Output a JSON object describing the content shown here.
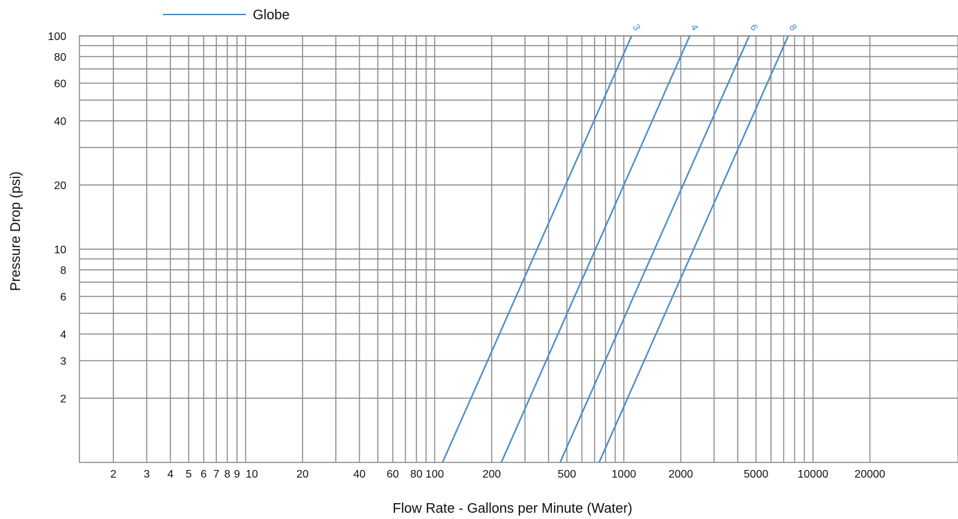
{
  "chart_data": {
    "type": "line",
    "title": "",
    "xlabel": "Flow Rate - Gallons per Minute (Water)",
    "ylabel": "Pressure Drop (psi)",
    "x_scale": "log",
    "y_scale": "log",
    "xlim": [
      1,
      40000
    ],
    "ylim": [
      1,
      100
    ],
    "grid": true,
    "legend": {
      "entries": [
        "Globe"
      ],
      "position": "top-left"
    },
    "x_gridlines": [
      2,
      3,
      4,
      5,
      6,
      7,
      8,
      9,
      10,
      20,
      30,
      40,
      50,
      60,
      70,
      80,
      90,
      100,
      200,
      300,
      400,
      500,
      600,
      700,
      800,
      900,
      1000,
      2000,
      3000,
      4000,
      5000,
      6000,
      7000,
      8000,
      9000,
      10000,
      20000
    ],
    "y_gridlines": [
      2,
      3,
      4,
      5,
      6,
      7,
      8,
      9,
      10,
      20,
      30,
      40,
      50,
      60,
      70,
      80,
      90,
      100
    ],
    "x_ticks": [
      {
        "value": 2,
        "label": "2"
      },
      {
        "value": 3,
        "label": "3"
      },
      {
        "value": 4,
        "label": "4"
      },
      {
        "value": 5,
        "label": "5"
      },
      {
        "value": 6,
        "label": "6"
      },
      {
        "value": 7,
        "label": "7"
      },
      {
        "value": 8,
        "label": "8"
      },
      {
        "value": 9,
        "label": "9"
      },
      {
        "value": 10,
        "label": "10"
      },
      {
        "value": 20,
        "label": "20"
      },
      {
        "value": 40,
        "label": "40"
      },
      {
        "value": 60,
        "label": "60"
      },
      {
        "value": 80,
        "label": "80"
      },
      {
        "value": 100,
        "label": "100"
      },
      {
        "value": 200,
        "label": "200"
      },
      {
        "value": 500,
        "label": "500"
      },
      {
        "value": 1000,
        "label": "1000"
      },
      {
        "value": 2000,
        "label": "2000"
      },
      {
        "value": 5000,
        "label": "5000"
      },
      {
        "value": 10000,
        "label": "10000"
      },
      {
        "value": 20000,
        "label": "20000"
      }
    ],
    "y_ticks": [
      {
        "value": 2,
        "label": "2"
      },
      {
        "value": 3,
        "label": "3"
      },
      {
        "value": 4,
        "label": "4"
      },
      {
        "value": 6,
        "label": "6"
      },
      {
        "value": 8,
        "label": "8"
      },
      {
        "value": 10,
        "label": "10"
      },
      {
        "value": 20,
        "label": "20"
      },
      {
        "value": 40,
        "label": "40"
      },
      {
        "value": 60,
        "label": "60"
      },
      {
        "value": 80,
        "label": "80"
      },
      {
        "value": 100,
        "label": "100"
      }
    ],
    "series": [
      {
        "name": "3",
        "x": [
          110,
          1100
        ],
        "y": [
          1,
          100
        ]
      },
      {
        "name": "4",
        "x": [
          225,
          2230
        ],
        "y": [
          1,
          100
        ]
      },
      {
        "name": "6",
        "x": [
          460,
          4600
        ],
        "y": [
          1,
          100
        ]
      },
      {
        "name": "8",
        "x": [
          740,
          7400
        ],
        "y": [
          1,
          100
        ]
      }
    ]
  },
  "colors": {
    "series": "#4a8bc9",
    "grid": "#8a8a8a",
    "text": "#111111"
  }
}
